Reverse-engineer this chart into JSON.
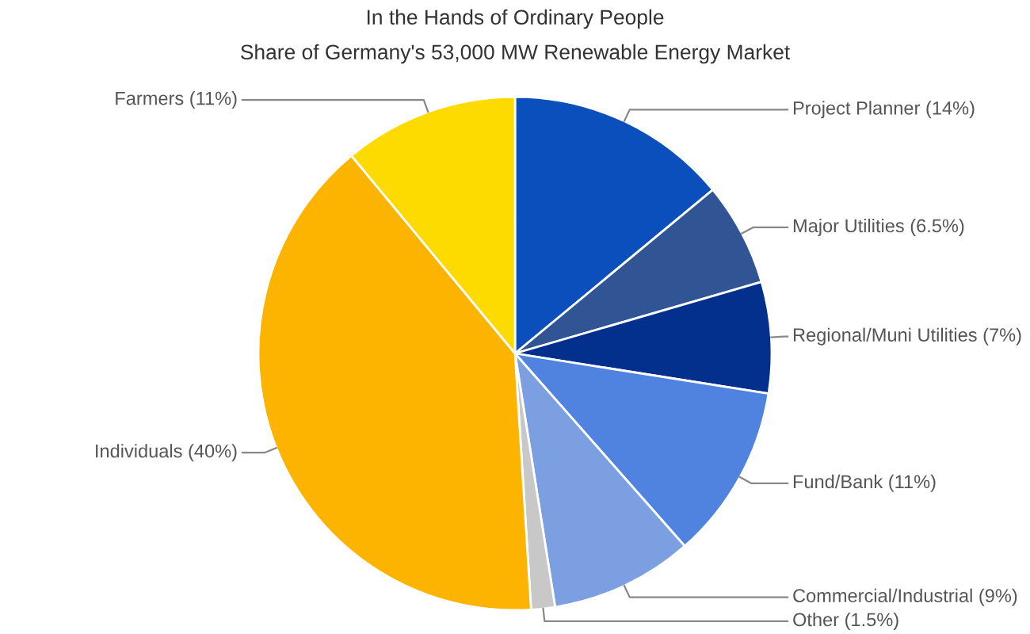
{
  "chart_data": {
    "type": "pie",
    "title": "In the Hands of Ordinary People",
    "subtitle": "Share of Germany's 53,000 MW Renewable Energy Market",
    "categories": [
      "Project Planner (14%)",
      "Major Utilities (6.5%)",
      "Regional/Muni Utilities (7%)",
      "Fund/Bank (11%)",
      "Commercial/Industrial (9%)",
      "Other (1.5%)",
      "Individuals (40%)",
      "Farmers (11%)"
    ],
    "values": [
      14,
      6.5,
      7,
      11,
      9,
      1.5,
      40,
      11
    ],
    "colors": [
      "#0b4fbd",
      "#315495",
      "#02308c",
      "#5083e0",
      "#7b9fe0",
      "#c8c8c8",
      "#fdb400",
      "#fdda00"
    ],
    "legend": false
  }
}
